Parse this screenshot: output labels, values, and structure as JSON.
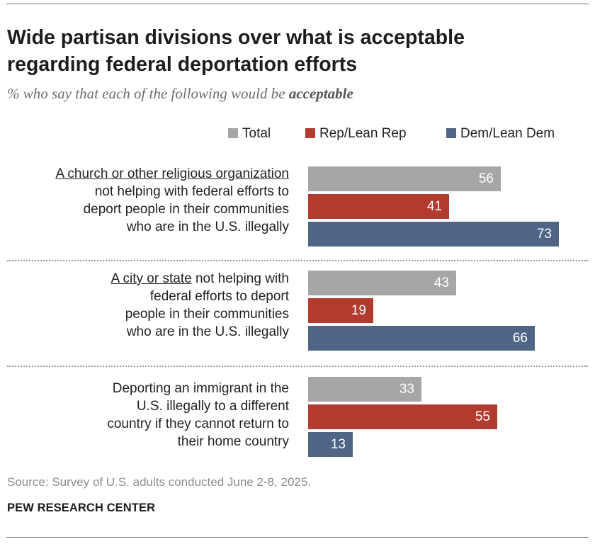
{
  "title_line1": "Wide partisan divisions over what is acceptable",
  "title_line2": "regarding federal deportation efforts",
  "subtitle_prefix": "% who say that each of the following would be ",
  "subtitle_emphasis": "acceptable",
  "source": "Source: Survey of U.S. adults conducted June 2-8, 2025.",
  "organization": "PEW RESEARCH CENTER",
  "colors": {
    "Total": "#a6a6a6",
    "Rep/Lean Rep": "#b23a2e",
    "Dem/Lean Dem": "#4e6585"
  },
  "chart_data": {
    "type": "bar",
    "orientation": "horizontal",
    "xlim": [
      0,
      100
    ],
    "legend_placement": "top",
    "legend": [
      "Total",
      "Rep/Lean Rep",
      "Dem/Lean Dem"
    ],
    "categories": [
      {
        "underlined": "A church or other religious organization",
        "lines": [
          "not helping with federal efforts to",
          "deport people in their communities",
          "who are in the U.S. illegally"
        ]
      },
      {
        "underlined": "A city or state",
        "first_line_rest": " not helping with",
        "lines": [
          "federal efforts to deport",
          "people in their communities",
          "who are in the U.S. illegally"
        ]
      },
      {
        "underlined": "",
        "lines": [
          "Deporting an immigrant in the",
          "U.S. illegally to a different",
          "country if they cannot return to",
          "their home country"
        ]
      }
    ],
    "series": [
      {
        "name": "Total",
        "values": [
          56,
          43,
          33
        ]
      },
      {
        "name": "Rep/Lean Rep",
        "values": [
          41,
          19,
          55
        ]
      },
      {
        "name": "Dem/Lean Dem",
        "values": [
          73,
          66,
          13
        ]
      }
    ]
  }
}
